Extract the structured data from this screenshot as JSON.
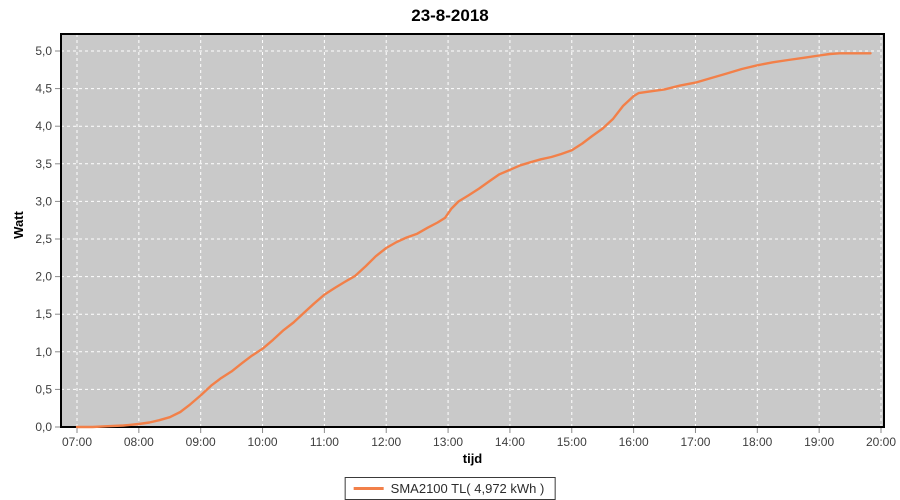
{
  "title": "23-8-2018",
  "y_axis": {
    "label": "Watt"
  },
  "x_axis": {
    "label": "tijd"
  },
  "legend": {
    "label": "SMA2100 TL( 4,972 kWh )"
  },
  "colors": {
    "series": "#F28049",
    "plot_background": "#C9C9C9",
    "gridline": "#FFFFFF",
    "plot_border": "#000000",
    "tick_text": "#3E3E3E",
    "tick_mark": "#8A8A8A"
  },
  "chart_data": {
    "type": "line",
    "title": "23-8-2018",
    "xlabel": "tijd",
    "ylabel": "Watt",
    "xlim_hours": [
      7,
      20
    ],
    "ylim": [
      0,
      5
    ],
    "x_tick_labels": [
      "07:00",
      "08:00",
      "09:00",
      "10:00",
      "11:00",
      "12:00",
      "13:00",
      "14:00",
      "15:00",
      "16:00",
      "17:00",
      "18:00",
      "19:00",
      "20:00"
    ],
    "y_tick_labels": [
      "0,0",
      "0,5",
      "1,0",
      "1,5",
      "2,0",
      "2,5",
      "3,0",
      "3,5",
      "4,0",
      "4,5",
      "5,0"
    ],
    "y_tick_values": [
      0,
      0.5,
      1,
      1.5,
      2,
      2.5,
      3,
      3.5,
      4,
      4.5,
      5
    ],
    "grid": true,
    "gridline_style": "dashed",
    "legend_position": "bottom-center",
    "total_label": "4,972 kWh",
    "series": [
      {
        "name": "SMA2100 TL( 4,972 kWh )",
        "color": "#F28049",
        "points": [
          [
            7.0,
            0.0
          ],
          [
            7.25,
            0.0
          ],
          [
            7.5,
            0.01
          ],
          [
            7.75,
            0.02
          ],
          [
            8.0,
            0.04
          ],
          [
            8.17,
            0.06
          ],
          [
            8.33,
            0.09
          ],
          [
            8.5,
            0.13
          ],
          [
            8.67,
            0.2
          ],
          [
            8.83,
            0.3
          ],
          [
            9.0,
            0.42
          ],
          [
            9.17,
            0.55
          ],
          [
            9.33,
            0.65
          ],
          [
            9.5,
            0.74
          ],
          [
            9.67,
            0.85
          ],
          [
            9.83,
            0.95
          ],
          [
            10.0,
            1.04
          ],
          [
            10.17,
            1.16
          ],
          [
            10.33,
            1.28
          ],
          [
            10.5,
            1.39
          ],
          [
            10.67,
            1.52
          ],
          [
            10.83,
            1.64
          ],
          [
            11.0,
            1.76
          ],
          [
            11.17,
            1.85
          ],
          [
            11.33,
            1.93
          ],
          [
            11.5,
            2.01
          ],
          [
            11.67,
            2.14
          ],
          [
            11.83,
            2.27
          ],
          [
            12.0,
            2.38
          ],
          [
            12.17,
            2.46
          ],
          [
            12.33,
            2.52
          ],
          [
            12.5,
            2.57
          ],
          [
            12.67,
            2.65
          ],
          [
            12.83,
            2.72
          ],
          [
            12.95,
            2.78
          ],
          [
            13.05,
            2.9
          ],
          [
            13.17,
            3.0
          ],
          [
            13.33,
            3.08
          ],
          [
            13.5,
            3.17
          ],
          [
            13.67,
            3.27
          ],
          [
            13.83,
            3.36
          ],
          [
            14.0,
            3.42
          ],
          [
            14.17,
            3.48
          ],
          [
            14.33,
            3.52
          ],
          [
            14.5,
            3.56
          ],
          [
            14.67,
            3.59
          ],
          [
            14.83,
            3.63
          ],
          [
            15.0,
            3.68
          ],
          [
            15.17,
            3.77
          ],
          [
            15.33,
            3.87
          ],
          [
            15.5,
            3.97
          ],
          [
            15.67,
            4.1
          ],
          [
            15.83,
            4.27
          ],
          [
            16.0,
            4.4
          ],
          [
            16.08,
            4.44
          ],
          [
            16.25,
            4.46
          ],
          [
            16.5,
            4.49
          ],
          [
            16.75,
            4.54
          ],
          [
            17.0,
            4.58
          ],
          [
            17.25,
            4.64
          ],
          [
            17.5,
            4.7
          ],
          [
            17.75,
            4.76
          ],
          [
            18.0,
            4.81
          ],
          [
            18.25,
            4.85
          ],
          [
            18.5,
            4.88
          ],
          [
            18.75,
            4.91
          ],
          [
            19.0,
            4.94
          ],
          [
            19.17,
            4.96
          ],
          [
            19.33,
            4.97
          ],
          [
            19.58,
            4.97
          ],
          [
            19.83,
            4.97
          ]
        ]
      }
    ]
  }
}
